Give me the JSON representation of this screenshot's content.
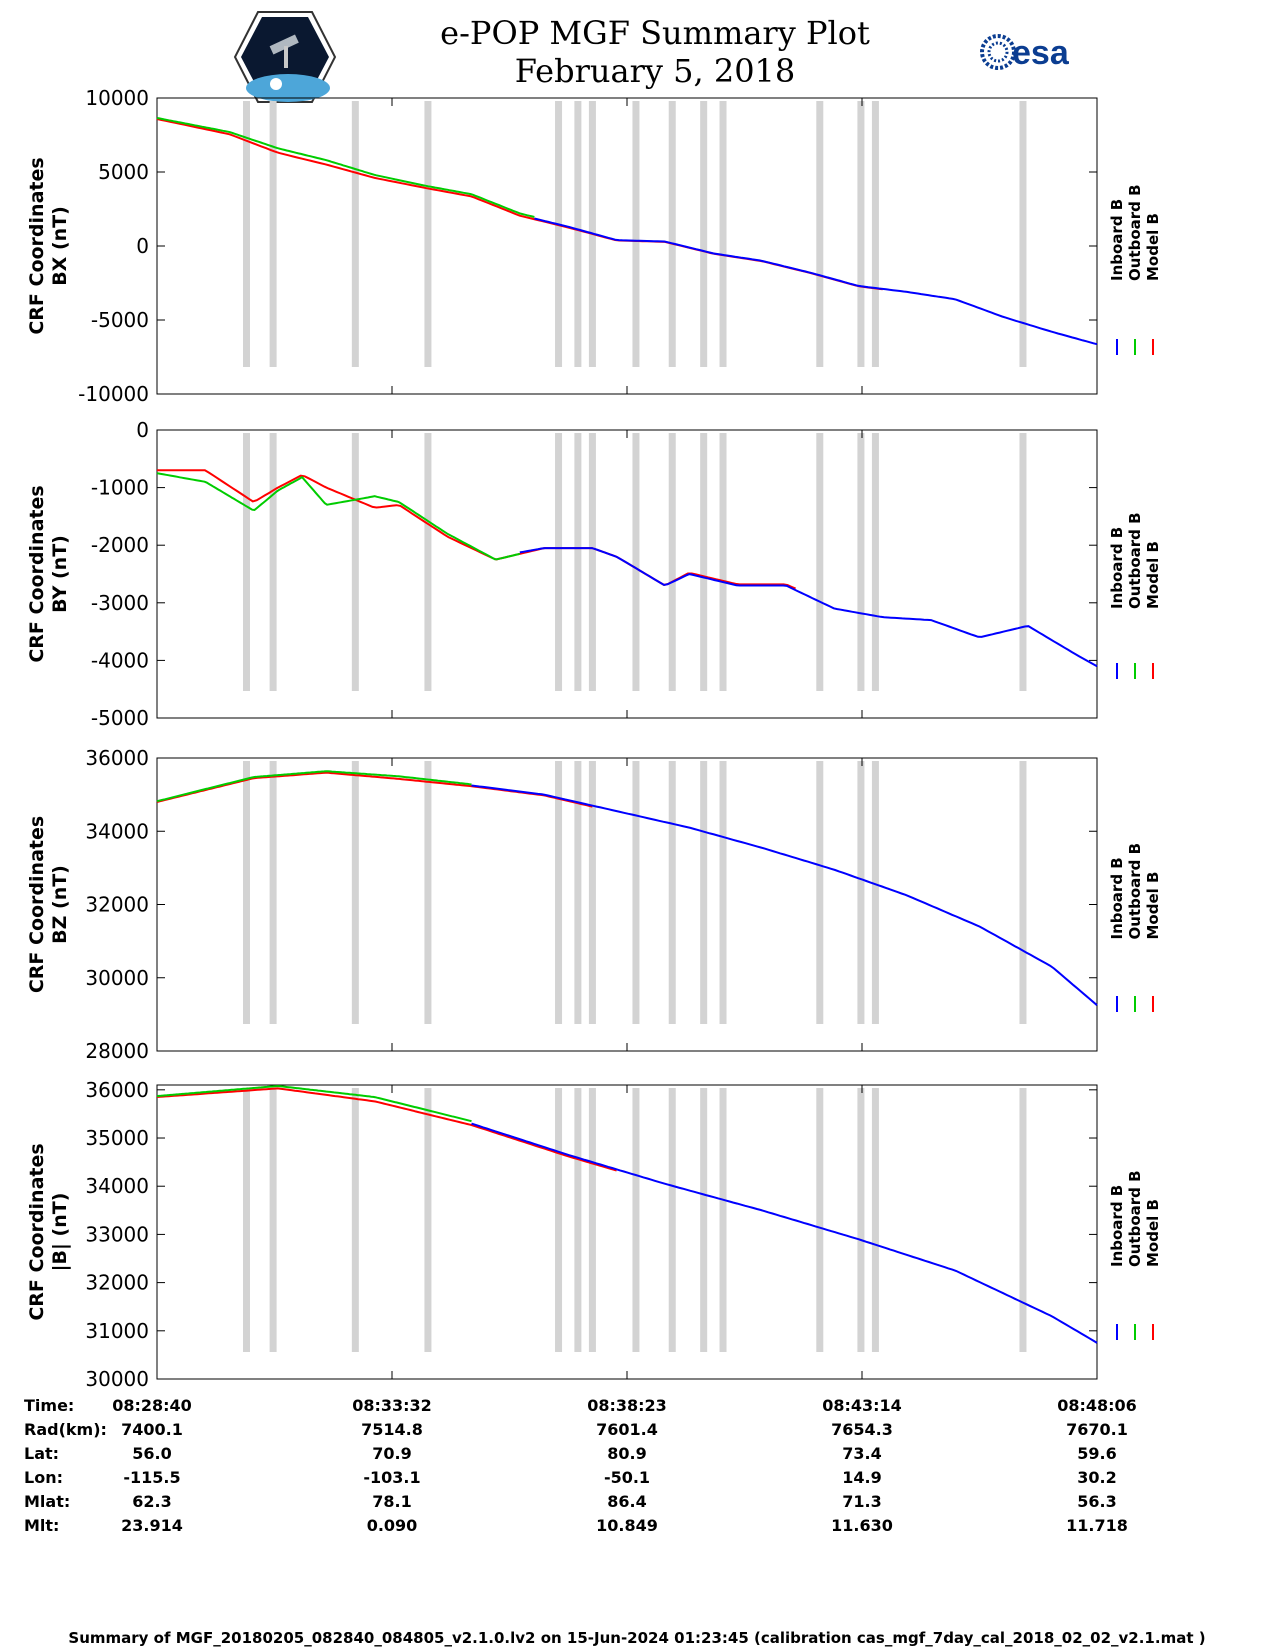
{
  "header": {
    "title_line1": "e-POP MGF Summary Plot",
    "title_line2": "February 5, 2018",
    "left_logo": "satellite-mission-logo",
    "right_logo_text": "esa"
  },
  "colors": {
    "inboard": "#0000ff",
    "outboard": "#00cc00",
    "model": "#ff0000",
    "gap_band": "#d3d3d3"
  },
  "chart_data": [
    {
      "type": "line",
      "id": "bx",
      "ylabel_line1": "CRF Coordinates",
      "ylabel_line2": "BX (nT)",
      "ylim": [
        -10000,
        10000
      ],
      "yticks": [
        10000,
        5000,
        0,
        -5000,
        -10000
      ],
      "ytick_labels": [
        "10000",
        "5000",
        "0",
        "-5000",
        "-10000"
      ],
      "x_minutes": [
        0,
        1.5,
        2.5,
        3.5,
        4.5,
        5.5,
        6.5,
        7.5,
        8.5,
        9.5,
        10.5,
        11.5,
        12.5,
        13.5,
        14.5,
        15.5,
        16.5,
        17.5,
        18.5,
        19.5
      ],
      "series": [
        {
          "name": "Inboard B",
          "x_range": [
            7.8,
            19.43
          ],
          "values": [
            8600,
            7600,
            6400,
            5600,
            4700,
            4000,
            3400,
            2100,
            1300,
            400,
            300,
            -500,
            -1000,
            -1800,
            -2700,
            -3100,
            -3600,
            -4800,
            -5800,
            -6700
          ]
        },
        {
          "name": "Outboard B",
          "x_range": [
            0,
            7.8
          ],
          "values": [
            8650,
            7700,
            6600,
            5800,
            4800,
            4100,
            3500,
            2200,
            1400,
            450,
            320,
            -480,
            -980,
            -1780,
            -2680,
            -3080,
            -3580,
            -4780,
            -5780,
            -6680
          ]
        },
        {
          "name": "Model B",
          "x_range": [
            0,
            15.0
          ],
          "values": [
            8580,
            7550,
            6300,
            5500,
            4600,
            3950,
            3350,
            2050,
            1250,
            380,
            280,
            -520,
            -1020,
            -1820,
            -2720,
            -3120,
            -3620,
            -4820,
            -5820,
            -6720
          ]
        }
      ]
    },
    {
      "type": "line",
      "id": "by",
      "ylabel_line1": "CRF Coordinates",
      "ylabel_line2": "BY (nT)",
      "ylim": [
        -5000,
        0
      ],
      "yticks": [
        0,
        -1000,
        -2000,
        -3000,
        -4000,
        -5000
      ],
      "ytick_labels": [
        "0",
        "-1000",
        "-2000",
        "-3000",
        "-4000",
        "-5000"
      ],
      "x_minutes": [
        0,
        1,
        2,
        2.5,
        3.0,
        3.5,
        4.5,
        5.0,
        6.0,
        7.0,
        8.0,
        9.0,
        9.5,
        10.5,
        11.0,
        12.0,
        13.0,
        14.0,
        15.0,
        16.0,
        17.0,
        18.0,
        19.0,
        19.43
      ],
      "series": [
        {
          "name": "Inboard B",
          "x_range": [
            7.5,
            19.43
          ],
          "values": [
            -700,
            -850,
            -1400,
            -1050,
            -800,
            -1100,
            -1300,
            -1200,
            -1800,
            -2200,
            -2050,
            -2050,
            -2200,
            -2700,
            -2500,
            -2700,
            -2700,
            -3100,
            -3250,
            -3300,
            -3600,
            -3400,
            -3900,
            -4100
          ]
        },
        {
          "name": "Outboard B",
          "x_range": [
            0,
            7.5
          ],
          "values": [
            -750,
            -900,
            -1400,
            -1050,
            -820,
            -1300,
            -1150,
            -1250,
            -1800,
            -2250,
            -2050,
            -2050,
            -2200,
            -2700,
            -2500,
            -2700,
            -2700,
            -3100,
            -3250,
            -3300,
            -3600,
            -3400,
            -3900,
            -4100
          ]
        },
        {
          "name": "Model B",
          "x_range": [
            0,
            13.2
          ],
          "values": [
            -700,
            -700,
            -1250,
            -1000,
            -780,
            -1000,
            -1350,
            -1300,
            -1850,
            -2250,
            -2050,
            -2050,
            -2200,
            -2700,
            -2480,
            -2680,
            -2680,
            -3050,
            -3100,
            -3300,
            -3600,
            -3400,
            -3900,
            -4100
          ]
        }
      ]
    },
    {
      "type": "line",
      "id": "bz",
      "ylabel_line1": "CRF Coordinates",
      "ylabel_line2": "BZ (nT)",
      "ylim": [
        28000,
        36000
      ],
      "yticks": [
        36000,
        34000,
        32000,
        30000,
        28000
      ],
      "ytick_labels": [
        "36000",
        "34000",
        "32000",
        "30000",
        "28000"
      ],
      "x_minutes": [
        0,
        2,
        3.5,
        5.0,
        6.5,
        8.0,
        9.5,
        11.0,
        12.5,
        14.0,
        15.5,
        17.0,
        18.5,
        19.43
      ],
      "series": [
        {
          "name": "Inboard B",
          "x_range": [
            6.5,
            19.43
          ],
          "values": [
            34800,
            35450,
            35600,
            35450,
            35250,
            35000,
            34550,
            34100,
            33550,
            32950,
            32250,
            31400,
            30300,
            29250
          ]
        },
        {
          "name": "Outboard B",
          "x_range": [
            0,
            6.5
          ],
          "values": [
            34820,
            35480,
            35640,
            35500,
            35280,
            35020,
            34560,
            34110,
            33560,
            32960,
            32260,
            31410,
            30310,
            29260
          ]
        },
        {
          "name": "Model B",
          "x_range": [
            0,
            9.0
          ],
          "values": [
            34800,
            35450,
            35600,
            35430,
            35230,
            34980,
            34520,
            34080,
            33530,
            32930,
            32230,
            31380,
            30280,
            29230
          ]
        }
      ]
    },
    {
      "type": "line",
      "id": "bmag",
      "ylabel_line1": "CRF Coordinates",
      "ylabel_line2": "|B| (nT)",
      "ylim": [
        30000,
        36100
      ],
      "yticks": [
        36000,
        35000,
        34000,
        33000,
        32000,
        31000,
        30000
      ],
      "ytick_labels": [
        "36000",
        "35000",
        "34000",
        "33000",
        "32000",
        "31000",
        "30000"
      ],
      "x_minutes": [
        0,
        2.5,
        4.5,
        6.5,
        8.5,
        10.5,
        12.5,
        14.5,
        16.5,
        18.5,
        19.43
      ],
      "series": [
        {
          "name": "Inboard B",
          "x_range": [
            6.5,
            19.43
          ],
          "values": [
            35850,
            36050,
            35800,
            35300,
            34650,
            34050,
            33500,
            32900,
            32250,
            31300,
            30750
          ]
        },
        {
          "name": "Outboard B",
          "x_range": [
            0,
            6.5
          ],
          "values": [
            35870,
            36080,
            35850,
            35350,
            34680,
            34070,
            33520,
            32920,
            32270,
            31320,
            30770
          ]
        },
        {
          "name": "Model B",
          "x_range": [
            0,
            9.5
          ],
          "values": [
            35850,
            36030,
            35760,
            35270,
            34620,
            34030,
            33480,
            32880,
            32230,
            31280,
            30730
          ]
        }
      ]
    }
  ],
  "gap_bands_minutes": [
    1.85,
    2.4,
    4.1,
    5.6,
    8.3,
    8.7,
    9.0,
    9.9,
    10.65,
    11.3,
    11.7,
    13.7,
    14.55,
    14.85,
    17.9
  ],
  "x_total_minutes": 19.43,
  "legend": [
    "Inboard B",
    "Outboard B",
    "Model B"
  ],
  "table": {
    "row_labels": [
      "Time:",
      "Rad(km):",
      "Lat:",
      "Lon:",
      "Mlat:",
      "Mlt:"
    ],
    "columns": [
      [
        "08:28:40",
        "7400.1",
        "56.0",
        "-115.5",
        "62.3",
        "23.914"
      ],
      [
        "08:33:32",
        "7514.8",
        "70.9",
        "-103.1",
        "78.1",
        "0.090"
      ],
      [
        "08:38:23",
        "7601.4",
        "80.9",
        "-50.1",
        "86.4",
        "10.849"
      ],
      [
        "08:43:14",
        "7654.3",
        "73.4",
        "14.9",
        "71.3",
        "11.630"
      ],
      [
        "08:48:06",
        "7670.1",
        "59.6",
        "30.2",
        "56.3",
        "11.718"
      ]
    ]
  },
  "footer": "Summary of MGF_20180205_082840_084805_v2.1.0.lv2 on 15-Jun-2024 01:23:45 (calibration cas_mgf_7day_cal_2018_02_02_v2.1.mat )"
}
